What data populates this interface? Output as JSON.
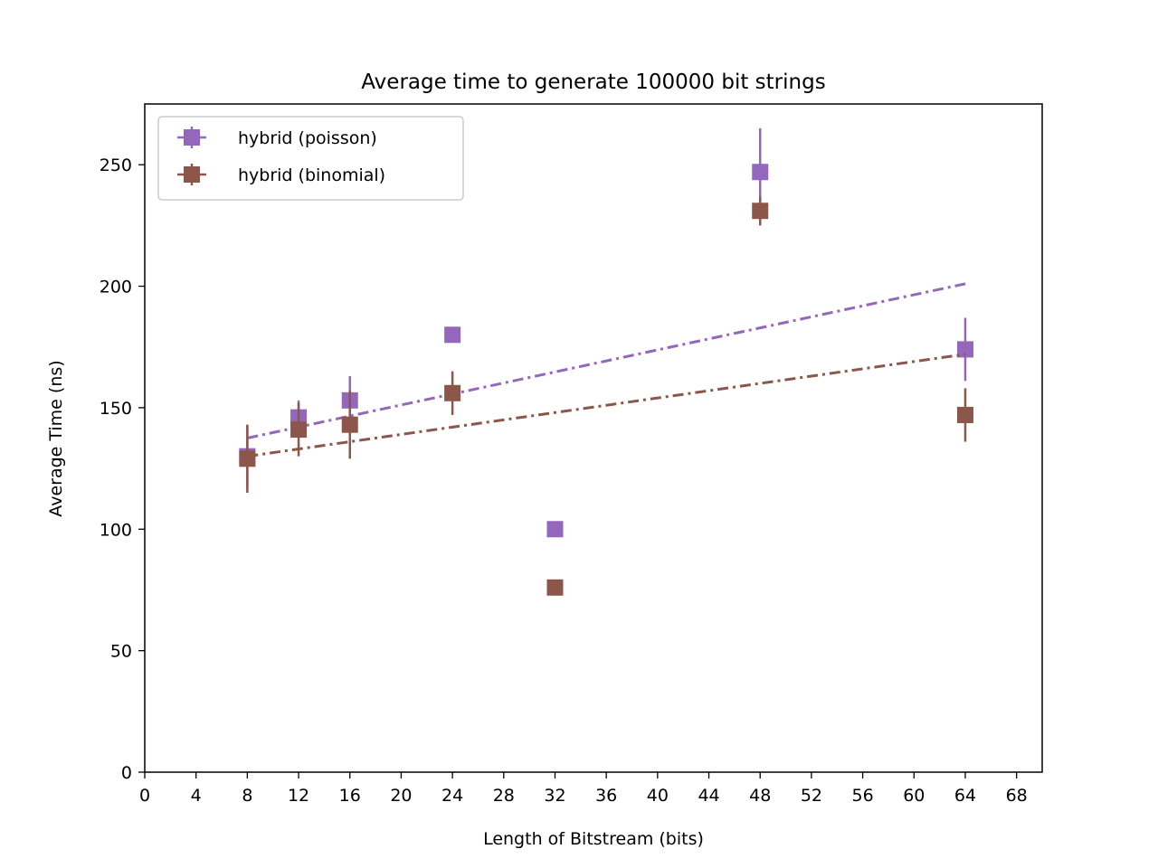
{
  "chart_data": {
    "type": "scatter",
    "title": "Average time to generate 100000 bit strings",
    "xlabel": "Length of Bitstream (bits)",
    "ylabel": "Average Time (ns)",
    "xlim": [
      0,
      70
    ],
    "ylim": [
      0,
      275
    ],
    "xticks": [
      0,
      4,
      8,
      12,
      16,
      20,
      24,
      28,
      32,
      36,
      40,
      44,
      48,
      52,
      56,
      60,
      64,
      68
    ],
    "yticks": [
      0,
      50,
      100,
      150,
      200,
      250
    ],
    "legend_position": "upper-left",
    "series": [
      {
        "name": "hybrid (poisson)",
        "color": "#9467bd",
        "marker": "square",
        "x": [
          8,
          12,
          16,
          24,
          32,
          48,
          64
        ],
        "y": [
          130,
          146,
          153,
          180,
          100,
          247,
          174
        ],
        "yerr": [
          13,
          7,
          10,
          0,
          0,
          18,
          13
        ],
        "fit": {
          "x": [
            8,
            64
          ],
          "y": [
            137.5,
            201
          ]
        }
      },
      {
        "name": "hybrid (binomial)",
        "color": "#8c564b",
        "marker": "square",
        "x": [
          8,
          12,
          16,
          24,
          32,
          48,
          64
        ],
        "y": [
          129,
          141,
          143,
          156,
          76,
          231,
          147
        ],
        "yerr": [
          14,
          11,
          14,
          9,
          0,
          6,
          11
        ],
        "fit": {
          "x": [
            8,
            64
          ],
          "y": [
            130,
            172
          ]
        }
      }
    ]
  }
}
